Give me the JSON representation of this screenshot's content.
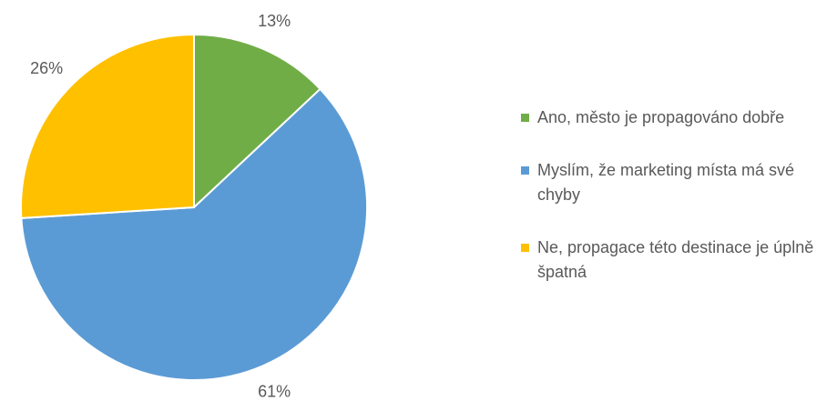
{
  "chart_data": {
    "type": "pie",
    "categories": [
      "Ano, město je propagováno dobře",
      "Myslím, že marketing místa má své chyby",
      "Ne, propagace této destinace je úplně špatná"
    ],
    "values": [
      13,
      61,
      26
    ],
    "value_labels": [
      "13%",
      "61%",
      "26%"
    ],
    "colors": [
      "#70ad47",
      "#5b9bd5",
      "#ffc000"
    ]
  }
}
